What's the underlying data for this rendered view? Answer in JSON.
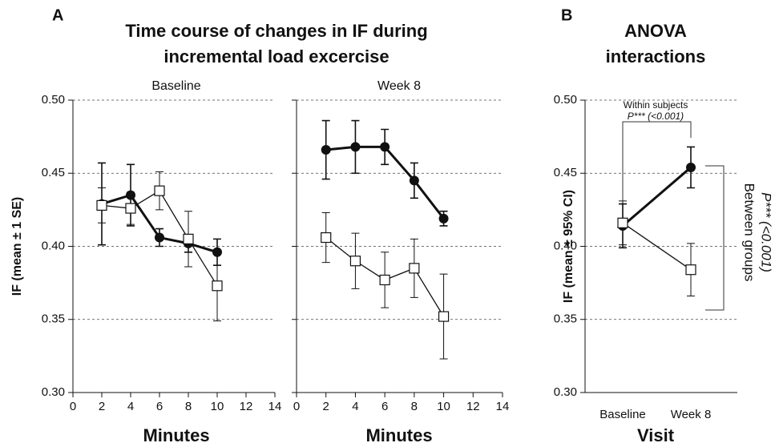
{
  "chart_data": [
    {
      "type": "line",
      "panel_label": "A",
      "title": [
        "Time course of changes in IF during",
        "incremental load excercise"
      ],
      "subtitle": "Baseline",
      "xlabel": "Minutes",
      "ylabel": "IF (mean ± 1 SE)",
      "x": [
        2,
        4,
        6,
        8,
        10
      ],
      "series": [
        {
          "color": "#111111",
          "marker": "circle",
          "values": [
            0.429,
            0.435,
            0.406,
            0.402,
            0.396
          ],
          "errors": [
            0.028,
            0.021,
            0.006,
            0.006,
            0.009
          ]
        },
        {
          "color": "#111111",
          "marker": "square",
          "values": [
            0.428,
            0.426,
            0.438,
            0.405,
            0.373
          ],
          "errors": [
            0.012,
            0.011,
            0.013,
            0.019,
            0.024
          ]
        }
      ],
      "xlim": [
        0,
        14
      ],
      "xticks": [
        0,
        2,
        4,
        6,
        8,
        10,
        12,
        14
      ],
      "ylim": [
        0.3,
        0.5
      ],
      "yticks": [
        {
          "value": 0.3,
          "label": "0.30"
        },
        0.35,
        {
          "value": 0.4,
          "label": "0.40"
        },
        0.45,
        {
          "value": 0.5,
          "label": "0.50"
        }
      ],
      "grid": true
    },
    {
      "type": "line",
      "subtitle": "Week 8",
      "xlabel": "Minutes",
      "x": [
        2,
        4,
        6,
        8,
        10
      ],
      "series": [
        {
          "color": "#111111",
          "marker": "circle",
          "values": [
            0.466,
            0.468,
            0.468,
            0.445,
            0.419
          ],
          "errors": [
            0.02,
            0.018,
            0.012,
            0.012,
            0.005
          ]
        },
        {
          "color": "#111111",
          "marker": "square",
          "values": [
            0.406,
            0.39,
            0.377,
            0.385,
            0.352
          ],
          "errors": [
            0.017,
            0.019,
            0.019,
            0.02,
            0.029
          ]
        }
      ],
      "xlim": [
        0,
        14
      ],
      "xticks": [
        0,
        2,
        4,
        6,
        8,
        10,
        12,
        14
      ],
      "ylim": [
        0.3,
        0.5
      ],
      "yticks": [
        0.3,
        0.35,
        0.4,
        0.45,
        0.5
      ],
      "grid": true
    },
    {
      "type": "line",
      "panel_label": "B",
      "title": [
        "ANOVA",
        "interactions"
      ],
      "xlabel": "Visit",
      "ylabel": "IF (mean ± 95% CI)",
      "categories": [
        "Baseline",
        "Week 8"
      ],
      "series": [
        {
          "color": "#111111",
          "marker": "circle",
          "values": [
            0.414,
            0.454
          ],
          "errors": [
            0.015,
            0.014
          ]
        },
        {
          "color": "#111111",
          "marker": "square",
          "values": [
            0.416,
            0.384
          ],
          "errors": [
            0.015,
            0.018
          ]
        }
      ],
      "ylim": [
        0.3,
        0.5
      ],
      "yticks": [
        {
          "value": 0.3,
          "label": "0.30"
        },
        0.35,
        {
          "value": 0.4,
          "label": "0.40"
        },
        0.45,
        {
          "value": 0.5,
          "label": "0.50"
        }
      ],
      "grid": true,
      "annotations": [
        "Within subjects",
        "P*** (<0.001)",
        "Between groups",
        "P*** (<0.001)"
      ]
    }
  ]
}
